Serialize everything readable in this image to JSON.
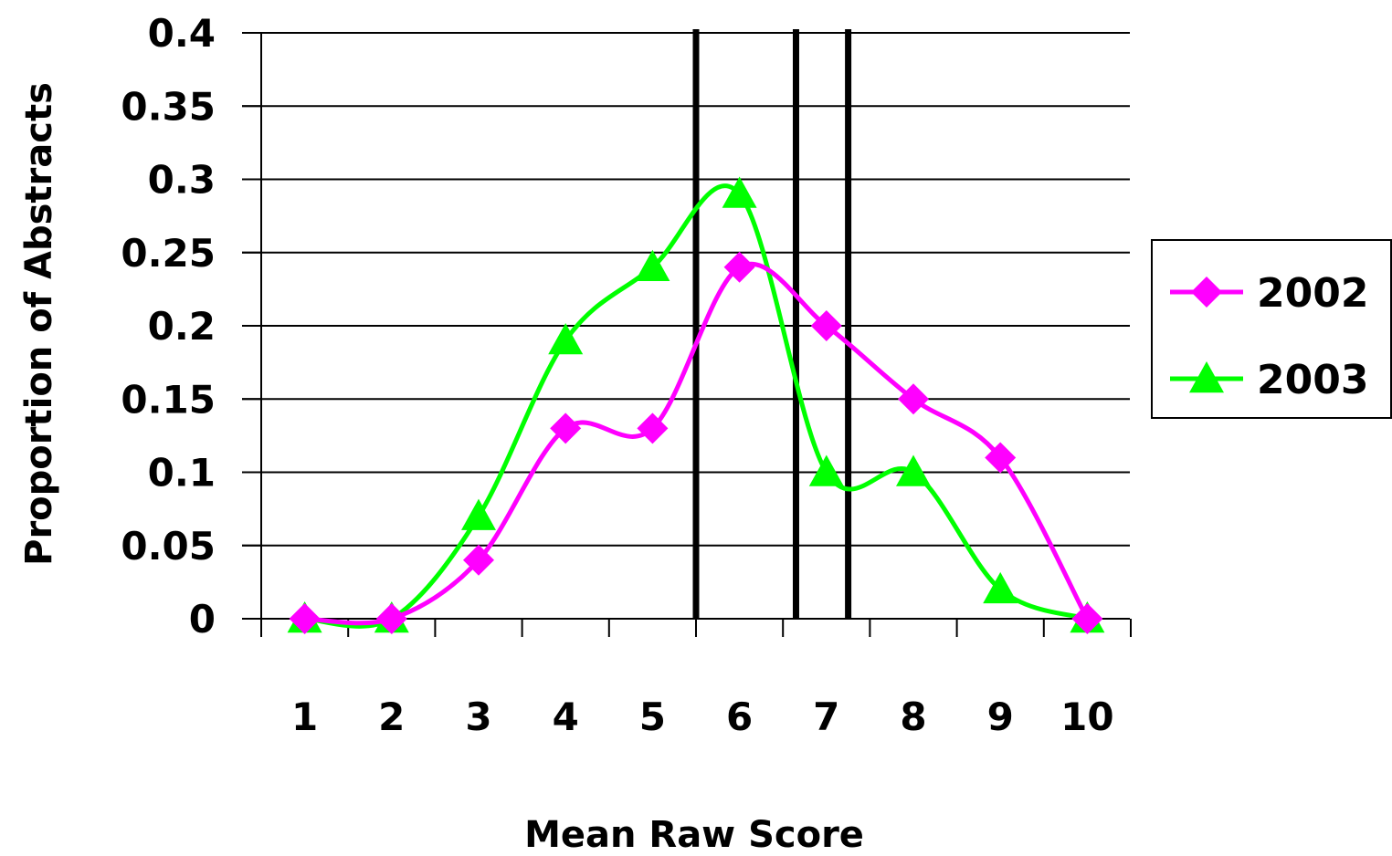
{
  "chart_data": {
    "type": "line",
    "title": "",
    "xlabel": "Mean Raw Score",
    "ylabel": "Proportion of Abstracts",
    "categories": [
      "1",
      "2",
      "3",
      "4",
      "5",
      "6",
      "7",
      "8",
      "9",
      "10"
    ],
    "x": [
      1,
      2,
      3,
      4,
      5,
      6,
      7,
      8,
      9,
      10
    ],
    "ylim": [
      0,
      0.4
    ],
    "yticks": [
      "0",
      "0.05",
      "0.1",
      "0.15",
      "0.2",
      "0.25",
      "0.3",
      "0.35",
      "0.4"
    ],
    "ytick_values": [
      0,
      0.05,
      0.1,
      0.15,
      0.2,
      0.25,
      0.3,
      0.35,
      0.4
    ],
    "grid": true,
    "smooth": true,
    "legend_position": "right",
    "series": [
      {
        "name": "2002",
        "values": [
          0,
          0,
          0.04,
          0.13,
          0.13,
          0.24,
          0.2,
          0.15,
          0.11,
          0
        ],
        "color": "#ff00ff",
        "marker": "diamond"
      },
      {
        "name": "2003",
        "values": [
          0,
          0,
          0.07,
          0.19,
          0.24,
          0.29,
          0.1,
          0.1,
          0.02,
          0
        ],
        "color": "#00ff00",
        "marker": "triangle"
      }
    ],
    "vertical_lines": [
      5.5,
      6.65,
      7.25
    ],
    "vertical_line_color": "#000000"
  }
}
